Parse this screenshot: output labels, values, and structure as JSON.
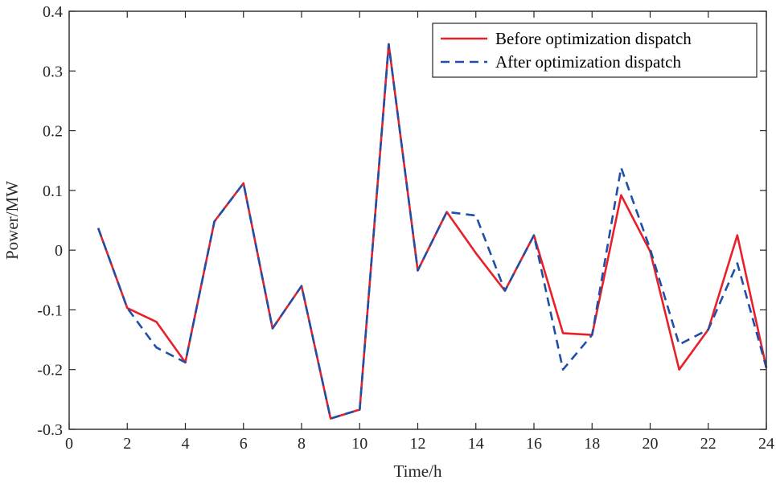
{
  "chart_data": {
    "type": "line",
    "xlabel": "Time/h",
    "ylabel": "Power/MW",
    "xlim": [
      0,
      24
    ],
    "ylim": [
      -0.3,
      0.4
    ],
    "xticks": [
      0,
      2,
      4,
      6,
      8,
      10,
      12,
      14,
      16,
      18,
      20,
      22,
      24
    ],
    "yticks": [
      -0.3,
      -0.2,
      -0.1,
      0,
      0.1,
      0.2,
      0.3,
      0.4
    ],
    "ytick_labels": [
      "-0.3",
      "-0.2",
      "-0.1",
      "0",
      "0.1",
      "0.2",
      "0.3",
      "0.4"
    ],
    "grid": false,
    "legend_position": "top-right",
    "x": [
      1,
      2,
      3,
      4,
      5,
      6,
      7,
      8,
      9,
      10,
      11,
      12,
      13,
      14,
      15,
      16,
      17,
      18,
      19,
      20,
      21,
      22,
      23,
      24
    ],
    "series": [
      {
        "name": "Before optimization dispatch",
        "color": "#e8202a",
        "style": "solid",
        "values": [
          0.037,
          -0.097,
          -0.12,
          -0.188,
          0.048,
          0.112,
          -0.131,
          -0.06,
          -0.282,
          -0.267,
          0.345,
          -0.034,
          0.064,
          -0.005,
          -0.068,
          0.025,
          -0.139,
          -0.142,
          0.092,
          -0.002,
          -0.2,
          -0.133,
          0.025,
          -0.197
        ]
      },
      {
        "name": "After optimization dispatch",
        "color": "#1f4fa8",
        "style": "dashed",
        "values": [
          0.037,
          -0.097,
          -0.163,
          -0.188,
          0.048,
          0.112,
          -0.131,
          -0.06,
          -0.282,
          -0.267,
          0.345,
          -0.034,
          0.064,
          0.058,
          -0.068,
          0.025,
          -0.2,
          -0.142,
          0.138,
          0.002,
          -0.158,
          -0.133,
          -0.022,
          -0.197
        ]
      }
    ]
  }
}
